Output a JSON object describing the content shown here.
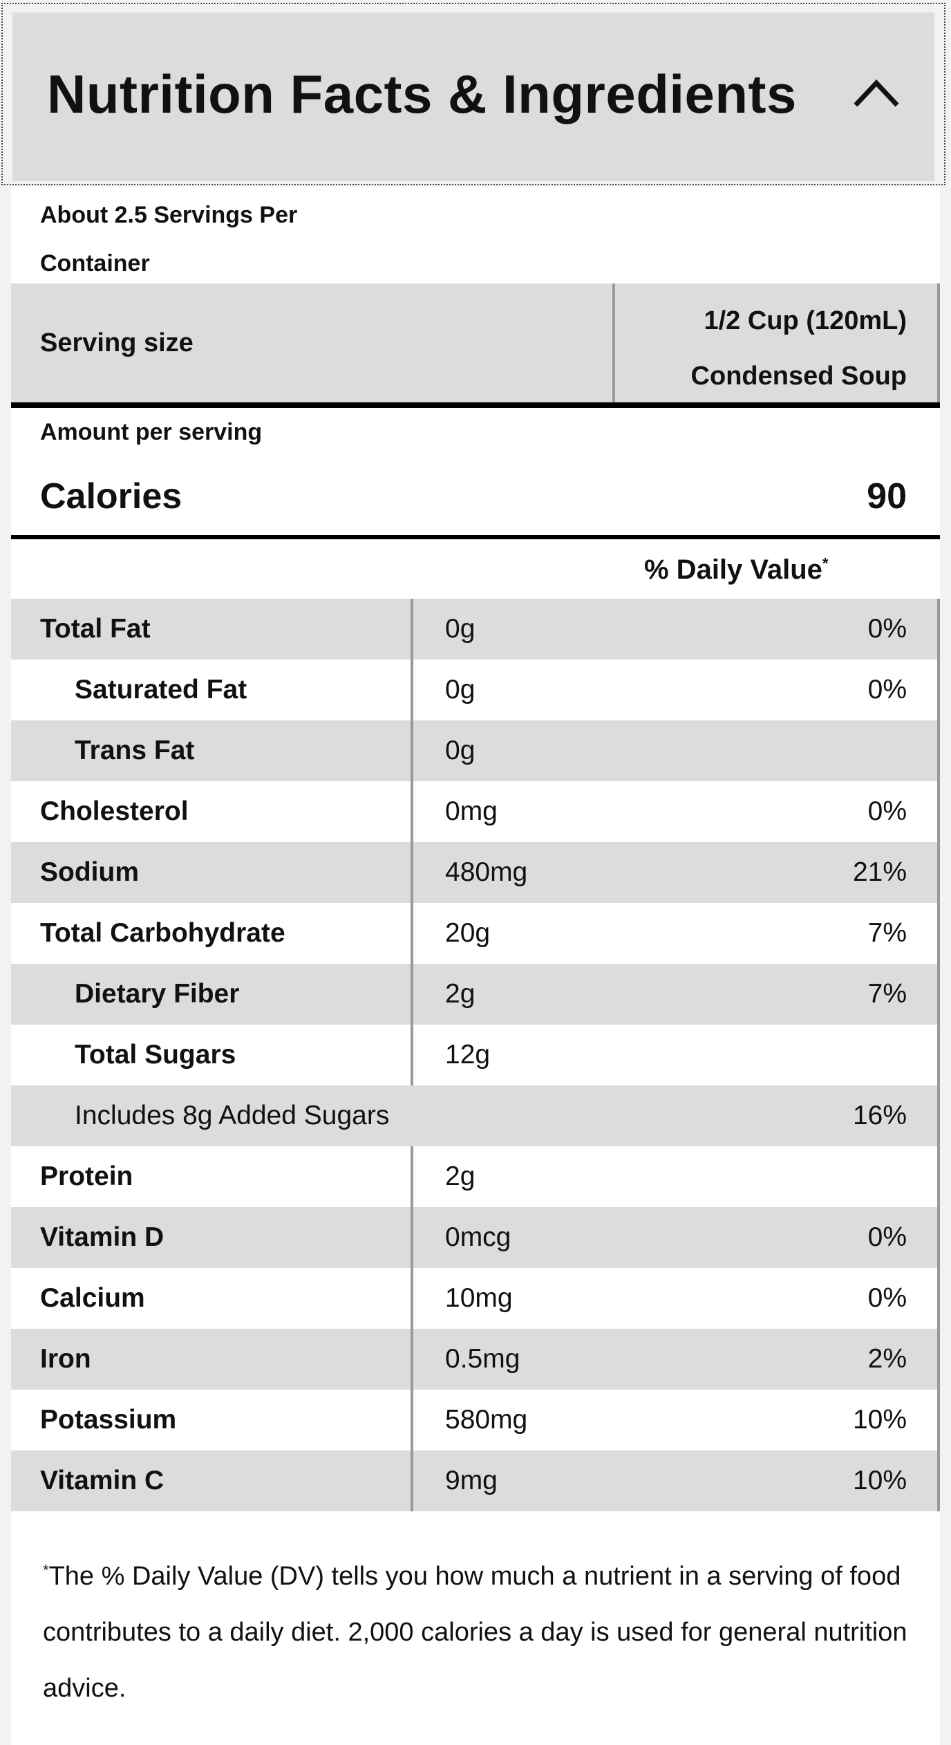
{
  "header": {
    "title": "Nutrition Facts & Ingredients",
    "toggle_icon": "chevron-up-icon"
  },
  "servings": {
    "per_container_line1": "About 2.5 Servings Per",
    "per_container_line2": "Container",
    "size_label": "Serving size",
    "size_value_line1": "1/2 Cup (120mL)",
    "size_value_line2": "Condensed Soup"
  },
  "calories": {
    "amount_per_serving": "Amount per serving",
    "label": "Calories",
    "value": "90"
  },
  "daily_value_header": "% Daily Value",
  "daily_value_marker": "*",
  "nutrients": [
    {
      "name": "Total Fat",
      "amount": "0g",
      "dv": "0%"
    },
    {
      "name": "Saturated Fat",
      "amount": "0g",
      "dv": "0%"
    },
    {
      "name": "Trans Fat",
      "amount": "0g",
      "dv": ""
    },
    {
      "name": "Cholesterol",
      "amount": "0mg",
      "dv": "0%"
    },
    {
      "name": "Sodium",
      "amount": "480mg",
      "dv": "21%"
    },
    {
      "name": "Total Carbohydrate",
      "amount": "20g",
      "dv": "7%"
    },
    {
      "name": "Dietary Fiber",
      "amount": "2g",
      "dv": "7%"
    },
    {
      "name": "Total Sugars",
      "amount": "12g",
      "dv": ""
    },
    {
      "name": "Includes 8g Added Sugars",
      "amount": "",
      "dv": "16%"
    },
    {
      "name": "Protein",
      "amount": "2g",
      "dv": ""
    },
    {
      "name": "Vitamin D",
      "amount": "0mcg",
      "dv": "0%"
    },
    {
      "name": "Calcium",
      "amount": "10mg",
      "dv": "0%"
    },
    {
      "name": "Iron",
      "amount": "0.5mg",
      "dv": "2%"
    },
    {
      "name": "Potassium",
      "amount": "580mg",
      "dv": "10%"
    },
    {
      "name": "Vitamin C",
      "amount": "9mg",
      "dv": "10%"
    }
  ],
  "footnote": {
    "marker": "*",
    "text": "The % Daily Value (DV) tells you how much a nutrient in a serving of food contributes to a daily diet. 2,000 calories a day is used for general nutrition advice."
  },
  "colors": {
    "header_bg": "#dcdcdc",
    "row_shade": "#dcdcdc",
    "divider": "#999999",
    "rule": "#000000",
    "text": "#111111"
  }
}
